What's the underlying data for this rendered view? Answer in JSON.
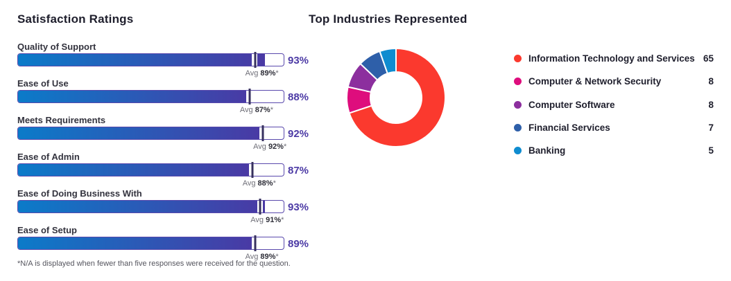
{
  "chart_data": [
    {
      "type": "bar",
      "orientation": "horizontal",
      "title": "Satisfaction Ratings",
      "categories": [
        "Quality of Support",
        "Ease of Use",
        "Meets Requirements",
        "Ease of Admin",
        "Ease of Doing Business With",
        "Ease of Setup"
      ],
      "series": [
        {
          "name": "Rating",
          "values": [
            93,
            88,
            92,
            87,
            93,
            89
          ]
        },
        {
          "name": "Average",
          "values": [
            89,
            87,
            92,
            88,
            91,
            89
          ]
        }
      ],
      "xlim": [
        0,
        100
      ],
      "value_suffix": "%",
      "avg_prefix": "Avg",
      "avg_suffix": "%",
      "avg_star": "*",
      "footnote": "*N/A is displayed when fewer than five responses were received for the question.",
      "bar_gradient": [
        "#0b7bc9",
        "#4a39a4"
      ],
      "grid": false
    },
    {
      "type": "pie",
      "donut": true,
      "title": "Top Industries Represented",
      "labels": [
        "Information Technology and Services",
        "Computer & Network Security",
        "Computer Software",
        "Financial Services",
        "Banking"
      ],
      "values": [
        65,
        8,
        8,
        7,
        5
      ],
      "colors": [
        "#fb392e",
        "#de0d7d",
        "#8c2f9e",
        "#2e5fa9",
        "#0f8cd0"
      ],
      "legend_position": "right",
      "start_angle_deg": 0,
      "direction": "clockwise"
    }
  ],
  "style": {
    "track_border": "#5948ac",
    "tick_color": "#37315f",
    "value_color": "#4c3aa5",
    "title_color": "#1e1e2c",
    "slice_gap_color": "#ffffff"
  }
}
